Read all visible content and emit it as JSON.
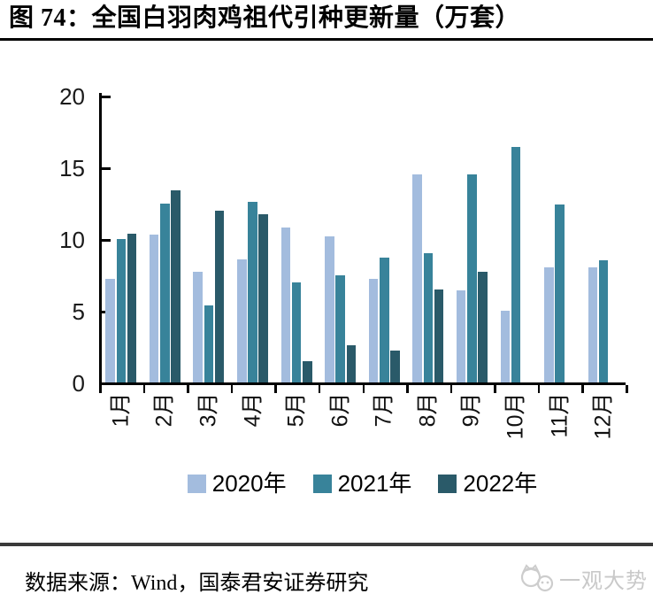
{
  "title": "图 74：全国白羽肉鸡祖代引种更新量（万套）",
  "source_note": "数据来源：Wind，国泰君安证券研究",
  "watermark": {
    "text": "一观大势"
  },
  "colors": {
    "axis": "#000000",
    "series_2020": "#A3BCDE",
    "series_2021": "#38839A",
    "series_2022": "#2A5A69",
    "footer_rule": "#3a3a3a",
    "watermark": "#c9c9c9"
  },
  "chart_data": {
    "type": "bar",
    "title": "全国白羽肉鸡祖代引种更新量（万套）",
    "categories": [
      "1月",
      "2月",
      "3月",
      "4月",
      "5月",
      "6月",
      "7月",
      "8月",
      "9月",
      "10月",
      "11月",
      "12月"
    ],
    "series": [
      {
        "name": "2020年",
        "color": "#A3BCDE",
        "values": [
          7.2,
          10.3,
          7.7,
          8.6,
          10.8,
          10.2,
          7.2,
          14.5,
          6.4,
          5.0,
          8.0,
          8.0
        ]
      },
      {
        "name": "2021年",
        "color": "#38839A",
        "values": [
          10.0,
          12.5,
          5.4,
          12.6,
          7.0,
          7.5,
          8.7,
          9.0,
          14.5,
          16.4,
          12.4,
          8.5
        ]
      },
      {
        "name": "2022年",
        "color": "#2A5A69",
        "values": [
          10.4,
          13.4,
          12.0,
          11.7,
          1.5,
          2.6,
          2.2,
          6.5,
          7.7,
          null,
          null,
          null
        ]
      }
    ],
    "xlabel": "",
    "ylabel": "",
    "ylim": [
      0,
      20
    ],
    "yticks": [
      0,
      5,
      10,
      15,
      20
    ],
    "grid": false,
    "legend_position": "bottom",
    "x_tick_rotation": -90
  }
}
